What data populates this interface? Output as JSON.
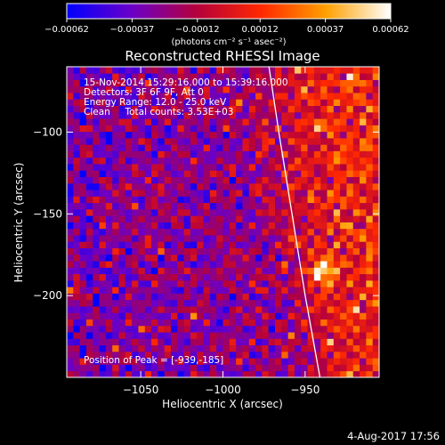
{
  "chart_data": {
    "type": "heatmap",
    "title": "Reconstructed RHESSI Image",
    "xlabel": "Heliocentric X (arcsec)",
    "ylabel": "Heliocentric Y (arcsec)",
    "xlim": [
      -1095,
      -905
    ],
    "ylim": [
      -250,
      -60
    ],
    "x_ticks": [
      -1050,
      -1000,
      -950
    ],
    "y_ticks": [
      -100,
      -150,
      -200
    ],
    "x_tick_labels": [
      "−1050",
      "−1000",
      "−950"
    ],
    "y_tick_labels": [
      "−100",
      "−150",
      "−200"
    ],
    "colorbar": {
      "range": [
        -0.00062,
        0.00062
      ],
      "tick_values": [
        -0.00062,
        -0.00037,
        -0.00012,
        0.00012,
        0.00037,
        0.00062
      ],
      "tick_labels": [
        "−0.00062",
        "−0.00037",
        "−0.00012",
        "0.00012",
        "0.00037",
        "0.00062"
      ],
      "units": "(photons cm⁻² s⁻¹ asec⁻²)",
      "colors": [
        "#0000ff",
        "#6a00c8",
        "#b4003c",
        "#ff2800",
        "#ffa000",
        "#ffffff"
      ]
    },
    "annotations": {
      "time_range": "15-Nov-2014 15:29:16.000 to 15:39:16.000",
      "detectors": "Detectors: 3F 6F 9F, Att 0",
      "energy_range": "Energy Range: 12.0 - 25.0 keV",
      "method": "Clean     Total counts: 3.53E+03",
      "peak_position": "Position of Peak = [-939,-185]"
    },
    "peak": [
      -939,
      -185
    ],
    "limb_curve": {
      "color": "#ffffff",
      "points": [
        [
          -972,
          -60
        ],
        [
          -966,
          -100
        ],
        [
          -958,
          -150
        ],
        [
          -950,
          -200
        ],
        [
          -941,
          -250
        ]
      ]
    },
    "grid": false,
    "grid_cells": {
      "nx": 48,
      "ny": 48
    }
  },
  "footer": {
    "date_stamp": "4-Aug-2017 17:56"
  }
}
